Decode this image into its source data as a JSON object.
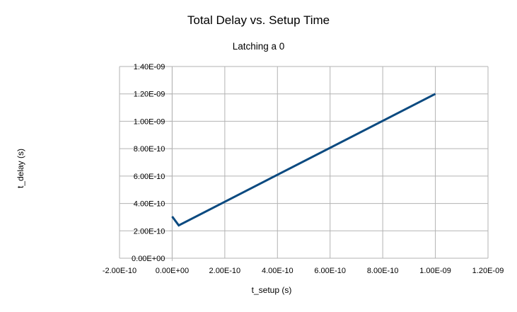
{
  "chart_data": {
    "type": "line",
    "title": "Total Delay vs. Setup Time",
    "subtitle": "Latching a 0",
    "xlabel": "t_setup (s)",
    "ylabel": "t_delay (s)",
    "xlim": [
      -2e-10,
      1.2e-09
    ],
    "ylim": [
      0.0,
      1.4e-09
    ],
    "x_ticks": [
      -2e-10,
      0.0,
      2e-10,
      4e-10,
      6e-10,
      8e-10,
      1e-09,
      1.2e-09
    ],
    "x_tick_labels": [
      "-2.00E-10",
      "0.00E+00",
      "2.00E-10",
      "4.00E-10",
      "6.00E-10",
      "8.00E-10",
      "1.00E-09",
      "1.20E-09"
    ],
    "y_ticks": [
      0.0,
      2e-10,
      4e-10,
      6e-10,
      8e-10,
      1e-09,
      1.2e-09,
      1.4e-09
    ],
    "y_tick_labels": [
      "0.00E+00",
      "2.00E-10",
      "4.00E-10",
      "6.00E-10",
      "8.00E-10",
      "1.00E-09",
      "1.20E-09",
      "1.40E-09"
    ],
    "grid": true,
    "legend": "none",
    "series": [
      {
        "color": "#0b4a80",
        "x": [
          0.0,
          2.5e-11,
          1e-09
        ],
        "y": [
          3.05e-10,
          2.4e-10,
          1.2e-09
        ]
      }
    ]
  }
}
